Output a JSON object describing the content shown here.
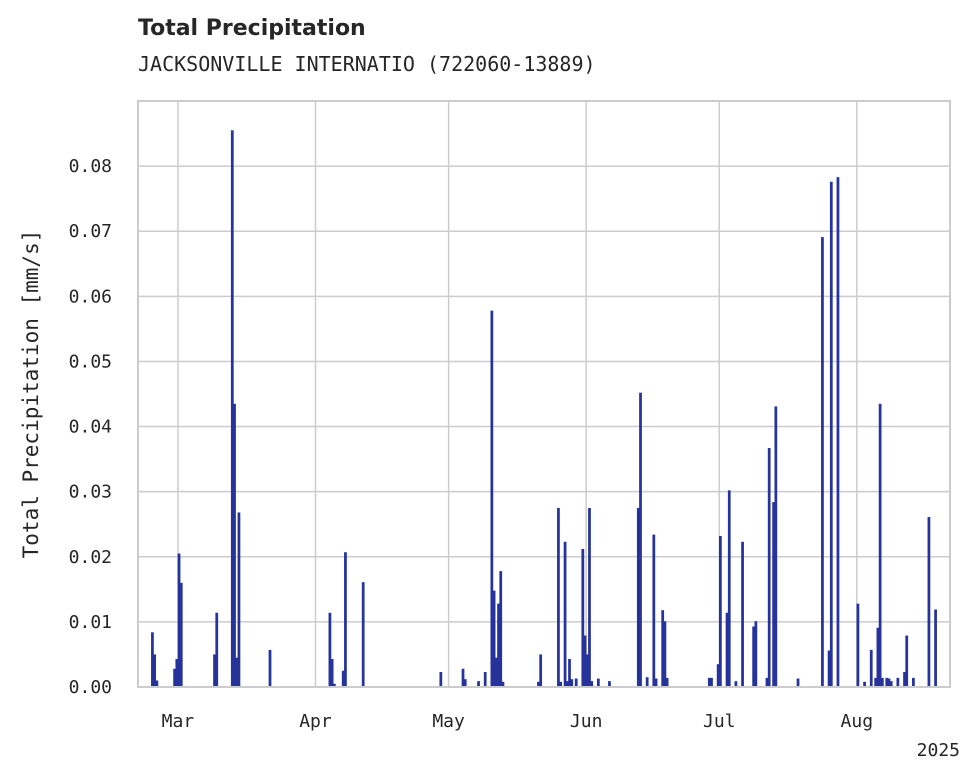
{
  "chart_data": {
    "type": "bar",
    "title": "Total Precipitation",
    "subtitle": "JACKSONVILLE INTERNATIO (722060-13889)",
    "xlabel": "",
    "ylabel": "Total Precipitation [mm/s]",
    "ylim": [
      0,
      0.09
    ],
    "xlim": [
      "2025-02-20",
      "2025-08-22"
    ],
    "yticks": [
      "0.00",
      "0.01",
      "0.02",
      "0.03",
      "0.04",
      "0.05",
      "0.06",
      "0.07",
      "0.08"
    ],
    "xticks": [
      {
        "date": "2025-03-01",
        "label": "Mar"
      },
      {
        "date": "2025-04-01",
        "label": "Apr"
      },
      {
        "date": "2025-05-01",
        "label": "May"
      },
      {
        "date": "2025-06-01",
        "label": "Jun"
      },
      {
        "date": "2025-07-01",
        "label": "Jul"
      },
      {
        "date": "2025-08-01",
        "label": "Aug"
      }
    ],
    "year_label": "2025",
    "grid": true,
    "bar_color": "#26339a",
    "series": [
      {
        "x": [
          "2025-02-23",
          "2025-02-23",
          "2025-02-24",
          "2025-02-28",
          "2025-02-28",
          "2025-03-01",
          "2025-03-01",
          "2025-03-09",
          "2025-03-09",
          "2025-03-13",
          "2025-03-13",
          "2025-03-14",
          "2025-03-14",
          "2025-03-21",
          "2025-04-04",
          "2025-04-04",
          "2025-04-05",
          "2025-04-07",
          "2025-04-07",
          "2025-04-11",
          "2025-04-29",
          "2025-05-04",
          "2025-05-04",
          "2025-05-07",
          "2025-05-09",
          "2025-05-10",
          "2025-05-11",
          "2025-05-11",
          "2025-05-12",
          "2025-05-12",
          "2025-05-13",
          "2025-05-21",
          "2025-05-21",
          "2025-05-25",
          "2025-05-26",
          "2025-05-27",
          "2025-05-27",
          "2025-05-28",
          "2025-05-28",
          "2025-05-29",
          "2025-05-31",
          "2025-05-31",
          "2025-06-01",
          "2025-06-01",
          "2025-06-02",
          "2025-06-03",
          "2025-06-06",
          "2025-06-12",
          "2025-06-13",
          "2025-06-14",
          "2025-06-16",
          "2025-06-16",
          "2025-06-18",
          "2025-06-18",
          "2025-06-19",
          "2025-06-28",
          "2025-06-29",
          "2025-06-30",
          "2025-07-01",
          "2025-07-02",
          "2025-07-03",
          "2025-07-04",
          "2025-07-06",
          "2025-07-08",
          "2025-07-09",
          "2025-07-11",
          "2025-07-12",
          "2025-07-13",
          "2025-07-13",
          "2025-07-18",
          "2025-07-24",
          "2025-07-25",
          "2025-07-26",
          "2025-07-27",
          "2025-08-01",
          "2025-08-02",
          "2025-08-04",
          "2025-08-05",
          "2025-08-05",
          "2025-08-06",
          "2025-08-06",
          "2025-08-07",
          "2025-08-08",
          "2025-08-08",
          "2025-08-10",
          "2025-08-11",
          "2025-08-12",
          "2025-08-13",
          "2025-08-17",
          "2025-08-18"
        ],
        "values": [
          0.0084,
          0.005,
          0.001,
          0.0043,
          0.0028,
          0.016,
          0.0205,
          0.0114,
          0.005,
          0.0435,
          0.0855,
          0.0268,
          0.0045,
          0.0057,
          0.0114,
          0.0043,
          0.0005,
          0.0207,
          0.0025,
          0.0161,
          0.0023,
          0.0012,
          0.0028,
          0.0009,
          0.0023,
          0.0578,
          0.0148,
          0.0045,
          0.0128,
          0.0178,
          0.0008,
          0.005,
          0.0008,
          0.0275,
          0.0008,
          0.0009,
          0.0223,
          0.0012,
          0.0043,
          0.0013,
          0.0212,
          0.0079,
          0.005,
          0.0275,
          0.0009,
          0.0013,
          0.0009,
          0.0275,
          0.0452,
          0.0015,
          0.0234,
          0.0013,
          0.0118,
          0.0101,
          0.0014,
          0.0014,
          0.0014,
          0.0035,
          0.0232,
          0.0114,
          0.0302,
          0.0009,
          0.0223,
          0.0093,
          0.0101,
          0.0014,
          0.0367,
          0.0431,
          0.0284,
          0.0013,
          0.0691,
          0.0056,
          0.0776,
          0.0783,
          0.0128,
          0.0008,
          0.0057,
          0.0091,
          0.0014,
          0.0014,
          0.0435,
          0.0014,
          0.0013,
          0.0009,
          0.0014,
          0.0023,
          0.0079,
          0.0014,
          0.0261,
          0.0119
        ]
      }
    ]
  }
}
